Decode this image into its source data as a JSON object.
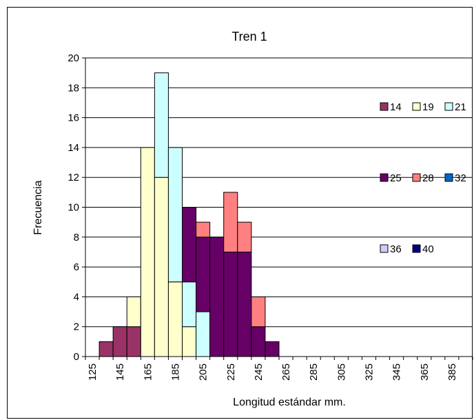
{
  "chart_data": {
    "type": "bar",
    "stacked": true,
    "title": "Tren 1",
    "xlabel": "Longitud estándar mm.",
    "ylabel": "Frecuencia",
    "ylim": [
      0,
      20
    ],
    "y_ticks": [
      "0",
      "2",
      "4",
      "6",
      "8",
      "10",
      "12",
      "14",
      "16",
      "18",
      "20"
    ],
    "x_tick_labels": [
      "125",
      "145",
      "165",
      "185",
      "205",
      "225",
      "245",
      "265",
      "285",
      "305",
      "325",
      "345",
      "365",
      "385"
    ],
    "categories": [
      "125",
      "135",
      "145",
      "155",
      "165",
      "175",
      "185",
      "195",
      "205",
      "215",
      "225",
      "235",
      "245",
      "255",
      "265",
      "275",
      "285",
      "295",
      "305",
      "315",
      "325",
      "335",
      "345",
      "355",
      "365",
      "375",
      "385",
      "395"
    ],
    "grid": true,
    "legend_position": "right",
    "series": [
      {
        "name": "14",
        "color": "#993366",
        "values": [
          0,
          1,
          2,
          2,
          0,
          0,
          0,
          0,
          0,
          0,
          0,
          0,
          0,
          0,
          0,
          0,
          0,
          0,
          0,
          0,
          0,
          0,
          0,
          0,
          0,
          0,
          0,
          0
        ]
      },
      {
        "name": "19",
        "color": "#FFFFCC",
        "values": [
          0,
          0,
          0,
          2,
          14,
          12,
          5,
          2,
          0,
          0,
          0,
          0,
          0,
          0,
          0,
          0,
          0,
          0,
          0,
          0,
          0,
          0,
          0,
          0,
          0,
          0,
          0,
          0
        ]
      },
      {
        "name": "21",
        "color": "#CCFFFF",
        "values": [
          0,
          0,
          0,
          0,
          0,
          7,
          9,
          3,
          3,
          0,
          0,
          0,
          0,
          0,
          0,
          0,
          0,
          0,
          0,
          0,
          0,
          0,
          0,
          0,
          0,
          0,
          0,
          0
        ]
      },
      {
        "name": "25",
        "color": "#660066",
        "values": [
          0,
          0,
          0,
          0,
          0,
          0,
          0,
          5,
          5,
          8,
          7,
          7,
          2,
          1,
          0,
          0,
          0,
          0,
          0,
          0,
          0,
          0,
          0,
          0,
          0,
          0,
          0,
          0
        ]
      },
      {
        "name": "28",
        "color": "#FF8080",
        "values": [
          0,
          0,
          0,
          0,
          0,
          0,
          0,
          0,
          1,
          0,
          4,
          2,
          2,
          0,
          0,
          0,
          0,
          0,
          0,
          0,
          0,
          0,
          0,
          0,
          0,
          0,
          0,
          0
        ]
      },
      {
        "name": "32",
        "color": "#0066CC",
        "values": [
          0,
          0,
          0,
          0,
          0,
          0,
          0,
          0,
          0,
          0,
          0,
          0,
          0,
          0,
          0,
          0,
          0,
          0,
          0,
          0,
          0,
          0,
          0,
          0,
          0,
          0,
          0,
          0
        ]
      },
      {
        "name": "36",
        "color": "#CCCCFF",
        "values": [
          0,
          0,
          0,
          0,
          0,
          0,
          0,
          0,
          0,
          0,
          0,
          0,
          0,
          0,
          0,
          0,
          0,
          0,
          0,
          0,
          0,
          0,
          0,
          0,
          0,
          0,
          0,
          0
        ]
      },
      {
        "name": "40",
        "color": "#000080",
        "values": [
          0,
          0,
          0,
          0,
          0,
          0,
          0,
          0,
          0,
          0,
          0,
          0,
          0,
          0,
          0,
          0,
          0,
          0,
          0,
          0,
          0,
          0,
          0,
          0,
          0,
          0,
          0,
          0
        ]
      }
    ],
    "legend_rows": [
      [
        "14",
        "19",
        "21"
      ],
      [
        "25",
        "28",
        "32"
      ],
      [
        "36",
        "40"
      ]
    ]
  }
}
